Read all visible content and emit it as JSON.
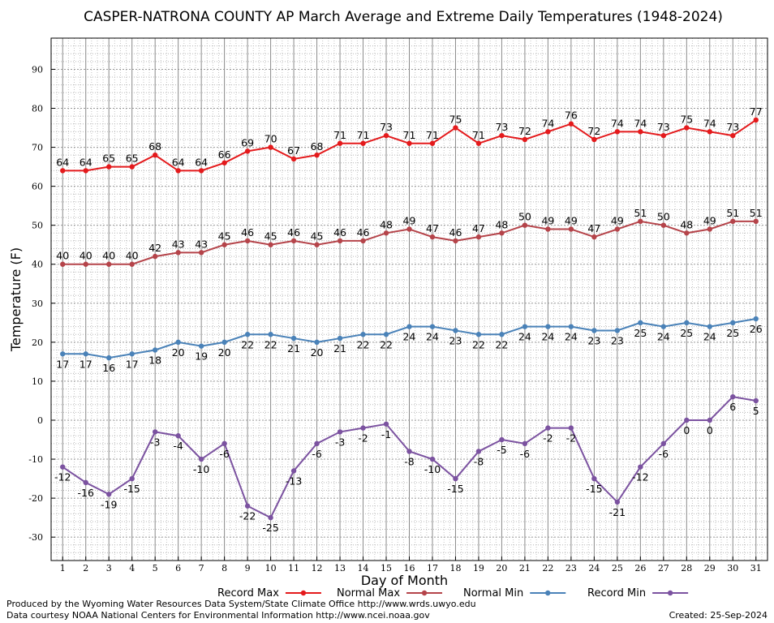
{
  "chart_data": {
    "type": "line",
    "title": "CASPER-NATRONA COUNTY AP March Average and Extreme Daily Temperatures (1948-2024)",
    "xlabel": "Day of Month",
    "ylabel": "Temperature (F)",
    "ylim": [
      -36,
      98
    ],
    "xlim": [
      0.5,
      31.5
    ],
    "yticks": [
      -30,
      -20,
      -10,
      0,
      10,
      20,
      30,
      40,
      50,
      60,
      70,
      80,
      90
    ],
    "x": [
      1,
      2,
      3,
      4,
      5,
      6,
      7,
      8,
      9,
      10,
      11,
      12,
      13,
      14,
      15,
      16,
      17,
      18,
      19,
      20,
      21,
      22,
      23,
      24,
      25,
      26,
      27,
      28,
      29,
      30,
      31
    ],
    "grid": true,
    "legend": "bottom",
    "series": [
      {
        "name": "Record Max",
        "color": "#e41a1c",
        "label_position": "above",
        "values": [
          64,
          64,
          65,
          65,
          68,
          64,
          64,
          66,
          69,
          70,
          67,
          68,
          71,
          71,
          73,
          71,
          71,
          75,
          71,
          73,
          72,
          74,
          76,
          72,
          74,
          74,
          73,
          75,
          74,
          73,
          77
        ]
      },
      {
        "name": "Normal Max",
        "color": "#b5444a",
        "label_position": "above",
        "values": [
          40,
          40,
          40,
          40,
          42,
          43,
          43,
          45,
          46,
          45,
          46,
          45,
          46,
          46,
          48,
          49,
          47,
          46,
          47,
          48,
          50,
          49,
          49,
          47,
          49,
          51,
          50,
          48,
          49,
          51,
          51
        ]
      },
      {
        "name": "Normal Min",
        "color": "#4a82b8",
        "label_position": "below",
        "values": [
          17,
          17,
          16,
          17,
          18,
          20,
          19,
          20,
          22,
          22,
          21,
          20,
          21,
          22,
          22,
          24,
          24,
          23,
          22,
          22,
          24,
          24,
          24,
          23,
          23,
          25,
          24,
          25,
          24,
          25,
          26
        ]
      },
      {
        "name": "Record Min",
        "color": "#7b52a0",
        "label_position": "below",
        "values": [
          -12,
          -16,
          -19,
          -15,
          -3,
          -4,
          -10,
          -6,
          -22,
          -25,
          -13,
          -6,
          -3,
          -2,
          -1,
          -8,
          -10,
          -15,
          -8,
          -5,
          -6,
          -2,
          -2,
          -15,
          -21,
          -12,
          -6,
          0,
          0,
          6,
          5
        ]
      }
    ]
  },
  "footer": {
    "line1": "Produced by the Wyoming Water Resources Data System/State Climate Office http://www.wrds.uwyo.edu",
    "line2": "Data courtesy NOAA National Centers for Environmental Information http://www.ncei.noaa.gov",
    "created": "Created:  25-Sep-2024"
  }
}
